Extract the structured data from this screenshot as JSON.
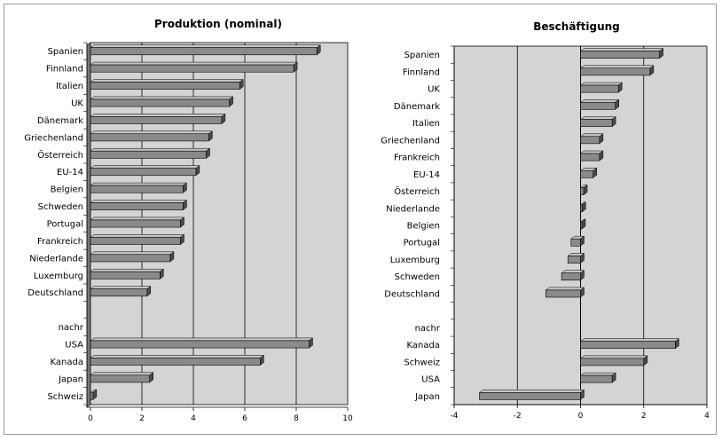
{
  "chart_data": [
    {
      "type": "bar",
      "orientation": "horizontal",
      "title": "Produktion (nominal)",
      "xlim": [
        0,
        10
      ],
      "xticks": [
        0,
        2,
        4,
        6,
        8,
        10
      ],
      "grid": true,
      "bars_3d": true,
      "categories": [
        "Spanien",
        "Finnland",
        "Italien",
        "UK",
        "Dänemark",
        "Griechenland",
        "Österreich",
        "EU-14",
        "Belgien",
        "Schweden",
        "Portugal",
        "Frankreich",
        "Niederlande",
        "Luxemburg",
        "Deutschland",
        "",
        "nachr",
        "USA",
        "Kanada",
        "Japan",
        "Schweiz"
      ],
      "values": [
        8.8,
        7.9,
        5.8,
        5.4,
        5.1,
        4.6,
        4.5,
        4.1,
        3.6,
        3.6,
        3.5,
        3.5,
        3.1,
        2.7,
        2.2,
        null,
        null,
        8.5,
        6.6,
        2.3,
        0.1
      ]
    },
    {
      "type": "bar",
      "orientation": "horizontal",
      "title": "Beschäftigung",
      "xlim": [
        -4,
        4
      ],
      "xticks": [
        -4,
        -2,
        0,
        2,
        4
      ],
      "grid": true,
      "bars_3d": true,
      "categories": [
        "Spanien",
        "Finnland",
        "UK",
        "Dänemark",
        "Italien",
        "Griechenland",
        "Frankreich",
        "EU-14",
        "Österreich",
        "Niederlande",
        "Belgien",
        "Portugal",
        "Luxemburg",
        "Schweden",
        "Deutschland",
        "",
        "nachr",
        "Kanada",
        "Schweiz",
        "USA",
        "Japan"
      ],
      "values": [
        2.5,
        2.2,
        1.2,
        1.1,
        1.0,
        0.6,
        0.6,
        0.4,
        0.1,
        0.05,
        0.0,
        -0.3,
        -0.4,
        -0.6,
        -1.1,
        null,
        null,
        3.0,
        2.0,
        1.0,
        -3.2
      ]
    }
  ],
  "colors": {
    "plot_bg": "#d4d4d4",
    "bar_front": "#8a8a8a",
    "bar_top": "#c6c6c6",
    "bar_side": "#4a4a4a",
    "grid": "#000000"
  }
}
